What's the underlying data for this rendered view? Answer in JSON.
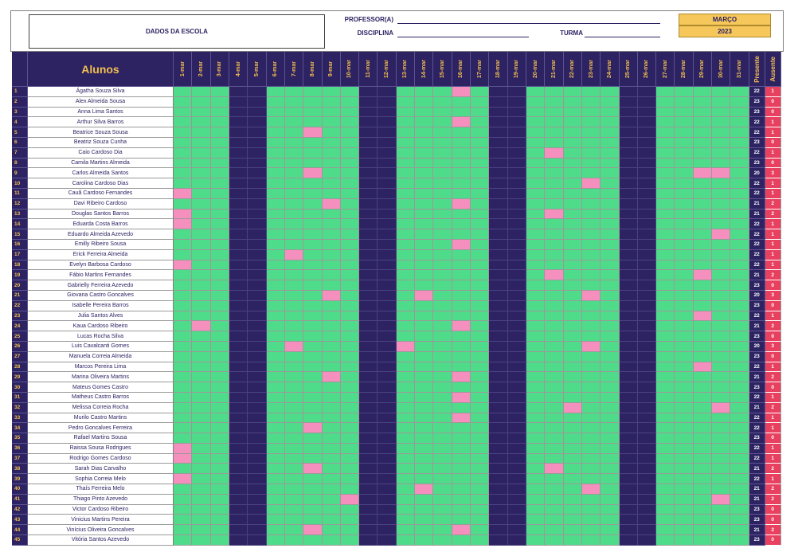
{
  "header": {
    "school_label": "DADOS DA ESCOLA",
    "teacher_label": "PROFESSOR(A)",
    "subject_label": "DISCIPLINA",
    "class_label": "TURMA",
    "month": "MARÇO",
    "year": "2023"
  },
  "table": {
    "title": "Alunos",
    "present_label": "Presente",
    "absent_label": "Ausente",
    "days": [
      "1-mar",
      "2-mar",
      "3-mar",
      "4-mar",
      "5-mar",
      "6-mar",
      "7-mar",
      "8-mar",
      "9-mar",
      "10-mar",
      "11-mar",
      "12-mar",
      "13-mar",
      "14-mar",
      "15-mar",
      "16-mar",
      "17-mar",
      "18-mar",
      "19-mar",
      "20-mar",
      "21-mar",
      "22-mar",
      "23-mar",
      "24-mar",
      "25-mar",
      "26-mar",
      "27-mar",
      "28-mar",
      "29-mar",
      "30-mar",
      "31-mar"
    ],
    "weekend_days": [
      4,
      5,
      11,
      12,
      18,
      19,
      25,
      26
    ],
    "students": [
      {
        "num": "1",
        "name": "Ágatha Souza Silva",
        "absent_days": [
          16
        ],
        "present": "22",
        "absent": "1"
      },
      {
        "num": "2",
        "name": "Alex Almeida Sousa",
        "absent_days": [],
        "present": "23",
        "absent": "0"
      },
      {
        "num": "3",
        "name": "Anna Lima Santos",
        "absent_days": [],
        "present": "23",
        "absent": "0"
      },
      {
        "num": "4",
        "name": "Arthur Silva Barros",
        "absent_days": [
          16
        ],
        "present": "22",
        "absent": "1"
      },
      {
        "num": "5",
        "name": "Beatrice Souza Sousa",
        "absent_days": [
          8
        ],
        "present": "22",
        "absent": "1"
      },
      {
        "num": "6",
        "name": "Beatriz Souza Cunha",
        "absent_days": [],
        "present": "23",
        "absent": "0"
      },
      {
        "num": "7",
        "name": "Caio Cardoso Dia",
        "absent_days": [
          21
        ],
        "present": "22",
        "absent": "1"
      },
      {
        "num": "8",
        "name": "Camila Martins Almeida",
        "absent_days": [],
        "present": "23",
        "absent": "0"
      },
      {
        "num": "9",
        "name": "Carlos Almeida Santos",
        "absent_days": [
          8,
          29,
          30
        ],
        "present": "20",
        "absent": "3"
      },
      {
        "num": "10",
        "name": "Carolina Cardoso Dias",
        "absent_days": [
          23
        ],
        "present": "22",
        "absent": "1"
      },
      {
        "num": "11",
        "name": "Cauã Cardoso Fernandes",
        "absent_days": [
          1
        ],
        "present": "22",
        "absent": "1"
      },
      {
        "num": "12",
        "name": "Davi Ribeiro Cardoso",
        "absent_days": [
          9,
          16
        ],
        "present": "21",
        "absent": "2"
      },
      {
        "num": "13",
        "name": "Douglas Santos Barros",
        "absent_days": [
          1,
          21
        ],
        "present": "21",
        "absent": "2"
      },
      {
        "num": "14",
        "name": "Eduarda Costa Barros",
        "absent_days": [
          1
        ],
        "present": "22",
        "absent": "1"
      },
      {
        "num": "15",
        "name": "Eduardo Almeida Azevedo",
        "absent_days": [
          30
        ],
        "present": "22",
        "absent": "1"
      },
      {
        "num": "16",
        "name": "Emilly Ribeiro Sousa",
        "absent_days": [
          16
        ],
        "present": "22",
        "absent": "1"
      },
      {
        "num": "17",
        "name": "Erick Ferreira Almeida",
        "absent_days": [
          7
        ],
        "present": "22",
        "absent": "1"
      },
      {
        "num": "18",
        "name": "Evelyn Barbosa Cardoso",
        "absent_days": [
          1
        ],
        "present": "22",
        "absent": "1"
      },
      {
        "num": "19",
        "name": "Fábio Martins Fernandes",
        "absent_days": [
          21,
          29
        ],
        "present": "21",
        "absent": "2"
      },
      {
        "num": "20",
        "name": "Gabrielly Ferreira Azevedo",
        "absent_days": [],
        "present": "23",
        "absent": "0"
      },
      {
        "num": "21",
        "name": "Giovana Castro Goncalves",
        "absent_days": [
          9,
          14,
          23
        ],
        "present": "20",
        "absent": "3"
      },
      {
        "num": "22",
        "name": "Isabelle Pereira Barros",
        "absent_days": [],
        "present": "23",
        "absent": "0"
      },
      {
        "num": "23",
        "name": "Julia Santos Alves",
        "absent_days": [
          29
        ],
        "present": "22",
        "absent": "1"
      },
      {
        "num": "24",
        "name": "Kaua Cardoso Ribeiro",
        "absent_days": [
          2,
          16
        ],
        "present": "21",
        "absent": "2"
      },
      {
        "num": "25",
        "name": "Lucas Rocha Silva",
        "absent_days": [],
        "present": "23",
        "absent": "0"
      },
      {
        "num": "26",
        "name": "Luis Cavalcanti Gomes",
        "absent_days": [
          7,
          13,
          23
        ],
        "present": "20",
        "absent": "3"
      },
      {
        "num": "27",
        "name": "Manuela Correia Almeida",
        "absent_days": [],
        "present": "23",
        "absent": "0"
      },
      {
        "num": "28",
        "name": "Marcos Pereira Lima",
        "absent_days": [
          29
        ],
        "present": "22",
        "absent": "1"
      },
      {
        "num": "29",
        "name": "Marina Oliveira Martins",
        "absent_days": [
          9,
          16
        ],
        "present": "21",
        "absent": "2"
      },
      {
        "num": "30",
        "name": "Mateus Gomes Castro",
        "absent_days": [],
        "present": "23",
        "absent": "0"
      },
      {
        "num": "31",
        "name": "Matheus Castro Barros",
        "absent_days": [
          16
        ],
        "present": "22",
        "absent": "1"
      },
      {
        "num": "32",
        "name": "Melissa Correia Rocha",
        "absent_days": [
          22,
          30
        ],
        "present": "21",
        "absent": "2"
      },
      {
        "num": "33",
        "name": "Murilo Castro Martins",
        "absent_days": [
          16
        ],
        "present": "22",
        "absent": "1"
      },
      {
        "num": "34",
        "name": "Pedro Goncalves Ferreira",
        "absent_days": [
          8
        ],
        "present": "22",
        "absent": "1"
      },
      {
        "num": "35",
        "name": "Rafael Martins Sousa",
        "absent_days": [],
        "present": "23",
        "absent": "0"
      },
      {
        "num": "36",
        "name": "Raissa Sousa Rodrigues",
        "absent_days": [
          1
        ],
        "present": "22",
        "absent": "1"
      },
      {
        "num": "37",
        "name": "Rodrigo Gomes Cardoso",
        "absent_days": [
          1
        ],
        "present": "22",
        "absent": "1"
      },
      {
        "num": "38",
        "name": "Sarah Dias Carvalho",
        "absent_days": [
          8,
          21
        ],
        "present": "21",
        "absent": "2"
      },
      {
        "num": "39",
        "name": "Sophia Correia Melo",
        "absent_days": [
          1
        ],
        "present": "22",
        "absent": "1"
      },
      {
        "num": "40",
        "name": "Thaís Ferreira Melo",
        "absent_days": [
          14,
          23
        ],
        "present": "21",
        "absent": "2"
      },
      {
        "num": "41",
        "name": "Thiago Pinto Azevedo",
        "absent_days": [
          10,
          30
        ],
        "present": "21",
        "absent": "2"
      },
      {
        "num": "42",
        "name": "Victor Cardoso Ribeiro",
        "absent_days": [],
        "present": "23",
        "absent": "0"
      },
      {
        "num": "43",
        "name": "Vinicius Martins Pereira",
        "absent_days": [],
        "present": "23",
        "absent": "0"
      },
      {
        "num": "44",
        "name": "Vinícius Oliveira Goncalves",
        "absent_days": [
          8,
          16
        ],
        "present": "21",
        "absent": "2"
      },
      {
        "num": "45",
        "name": "Vitória Santos Azevedo",
        "absent_days": [],
        "present": "23",
        "absent": "0"
      }
    ]
  },
  "colors": {
    "present": "#4fdc8a",
    "absent": "#f58fbd",
    "weekend": "#2d2363",
    "header_bg": "#2d2363",
    "accent": "#f3bf4e",
    "absent_count_bg": "#e8405f"
  }
}
